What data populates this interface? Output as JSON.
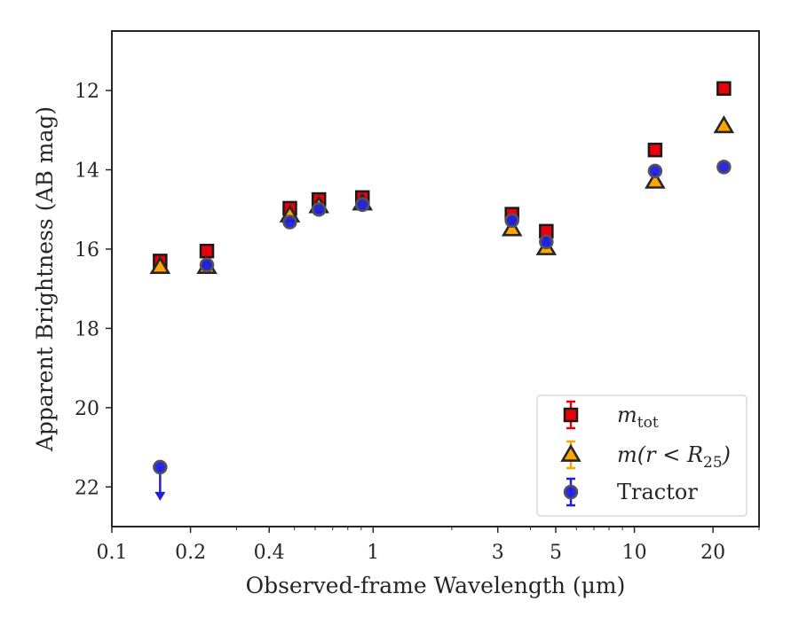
{
  "chart_data": {
    "type": "scatter",
    "xlabel": "Observed-frame Wavelength (μm)",
    "ylabel": "Apparent Brightness (AB mag)",
    "xscale": "log",
    "xlim": [
      0.1,
      30
    ],
    "ylim": [
      23,
      10.5
    ],
    "y_inverted": true,
    "grid": false,
    "legend_position": "lower-right",
    "x_ticks": [
      {
        "value": 0.1,
        "label": "0.1"
      },
      {
        "value": 0.2,
        "label": "0.2"
      },
      {
        "value": 0.4,
        "label": "0.4"
      },
      {
        "value": 1,
        "label": "1"
      },
      {
        "value": 3,
        "label": "3"
      },
      {
        "value": 5,
        "label": "5"
      },
      {
        "value": 10,
        "label": "10"
      },
      {
        "value": 20,
        "label": "20"
      }
    ],
    "y_ticks": [
      {
        "value": 12,
        "label": "12"
      },
      {
        "value": 14,
        "label": "14"
      },
      {
        "value": 16,
        "label": "16"
      },
      {
        "value": 18,
        "label": "18"
      },
      {
        "value": 20,
        "label": "20"
      },
      {
        "value": 22,
        "label": "22"
      }
    ],
    "series": [
      {
        "name": "m_tot",
        "legend_main": "m",
        "legend_sub": "tot",
        "marker": "square",
        "color": "#e8000b",
        "edge_color": "#1a1a1a",
        "points": [
          {
            "x": 0.153,
            "y": 16.3
          },
          {
            "x": 0.231,
            "y": 16.05
          },
          {
            "x": 0.48,
            "y": 14.97
          },
          {
            "x": 0.62,
            "y": 14.75
          },
          {
            "x": 0.91,
            "y": 14.7
          },
          {
            "x": 3.4,
            "y": 15.12
          },
          {
            "x": 4.6,
            "y": 15.55
          },
          {
            "x": 12.0,
            "y": 13.5
          },
          {
            "x": 22.0,
            "y": 11.95
          }
        ]
      },
      {
        "name": "m(r<R25)",
        "legend_main": "m(r < R",
        "legend_sub": "25",
        "legend_tail": ")",
        "marker": "triangle",
        "color": "#ffa500",
        "edge_color": "#262626",
        "points": [
          {
            "x": 0.153,
            "y": 16.45
          },
          {
            "x": 0.231,
            "y": 16.45
          },
          {
            "x": 0.48,
            "y": 15.15
          },
          {
            "x": 0.62,
            "y": 14.92
          },
          {
            "x": 0.91,
            "y": 14.85
          },
          {
            "x": 3.4,
            "y": 15.5
          },
          {
            "x": 4.6,
            "y": 15.98
          },
          {
            "x": 12.0,
            "y": 14.3
          },
          {
            "x": 22.0,
            "y": 12.9
          }
        ]
      },
      {
        "name": "Tractor",
        "legend_main": "Tractor",
        "marker": "circle",
        "color": "#1f1fe0",
        "edge_color": "#555555",
        "points": [
          {
            "x": 0.153,
            "y": 21.5,
            "upper_limit": true
          },
          {
            "x": 0.231,
            "y": 16.4
          },
          {
            "x": 0.48,
            "y": 15.32
          },
          {
            "x": 0.62,
            "y": 15.0
          },
          {
            "x": 0.91,
            "y": 14.88
          },
          {
            "x": 3.4,
            "y": 15.28
          },
          {
            "x": 4.6,
            "y": 15.82
          },
          {
            "x": 12.0,
            "y": 14.03
          },
          {
            "x": 22.0,
            "y": 13.93
          }
        ]
      }
    ]
  }
}
